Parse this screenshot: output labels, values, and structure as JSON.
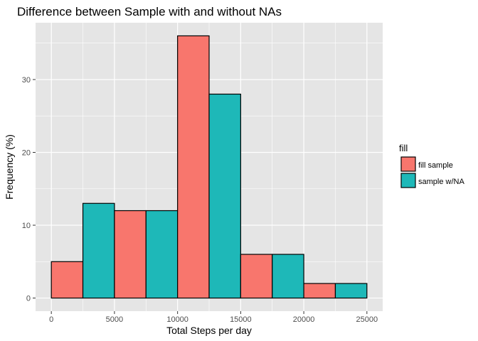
{
  "chart_data": {
    "type": "bar",
    "title": "Difference between Sample with and without NAs",
    "xlabel": "Total Steps per day",
    "ylabel": "Frequency (%)",
    "xlim": [
      -1250,
      26250
    ],
    "ylim": [
      -1.8,
      37.8
    ],
    "x_ticks": [
      0,
      5000,
      10000,
      15000,
      20000,
      25000
    ],
    "x_tick_labels": [
      "0",
      "5000",
      "10000",
      "15000",
      "20000",
      "25000"
    ],
    "y_ticks": [
      0,
      10,
      20,
      30
    ],
    "y_tick_labels": [
      "0",
      "10",
      "20",
      "30"
    ],
    "y_minor_ticks": [
      5,
      15,
      25,
      35
    ],
    "x_minor_ticks": [
      2500,
      7500,
      12500,
      17500,
      22500
    ],
    "grid": true,
    "panel_background": "#e5e5e5",
    "grid_color": "#ffffff",
    "bar_outline": "#000000",
    "legend": {
      "title": "fill",
      "placement": "right",
      "entries": [
        {
          "label": "fill sample",
          "color": "#f8766d"
        },
        {
          "label": "sample w/NA",
          "color": "#1eb8b8"
        }
      ]
    },
    "bars": [
      {
        "x_start": 0,
        "x_end": 2500,
        "value": 5,
        "series": "fill sample"
      },
      {
        "x_start": 2500,
        "x_end": 5000,
        "value": 13,
        "series": "sample w/NA"
      },
      {
        "x_start": 5000,
        "x_end": 7500,
        "value": 12,
        "series": "fill sample"
      },
      {
        "x_start": 7500,
        "x_end": 10000,
        "value": 12,
        "series": "sample w/NA"
      },
      {
        "x_start": 10000,
        "x_end": 12500,
        "value": 36,
        "series": "fill sample"
      },
      {
        "x_start": 12500,
        "x_end": 15000,
        "value": 28,
        "series": "sample w/NA"
      },
      {
        "x_start": 15000,
        "x_end": 17500,
        "value": 6,
        "series": "fill sample"
      },
      {
        "x_start": 17500,
        "x_end": 20000,
        "value": 6,
        "series": "sample w/NA"
      },
      {
        "x_start": 20000,
        "x_end": 22500,
        "value": 2,
        "series": "fill sample"
      },
      {
        "x_start": 22500,
        "x_end": 25000,
        "value": 2,
        "series": "sample w/NA"
      }
    ]
  }
}
